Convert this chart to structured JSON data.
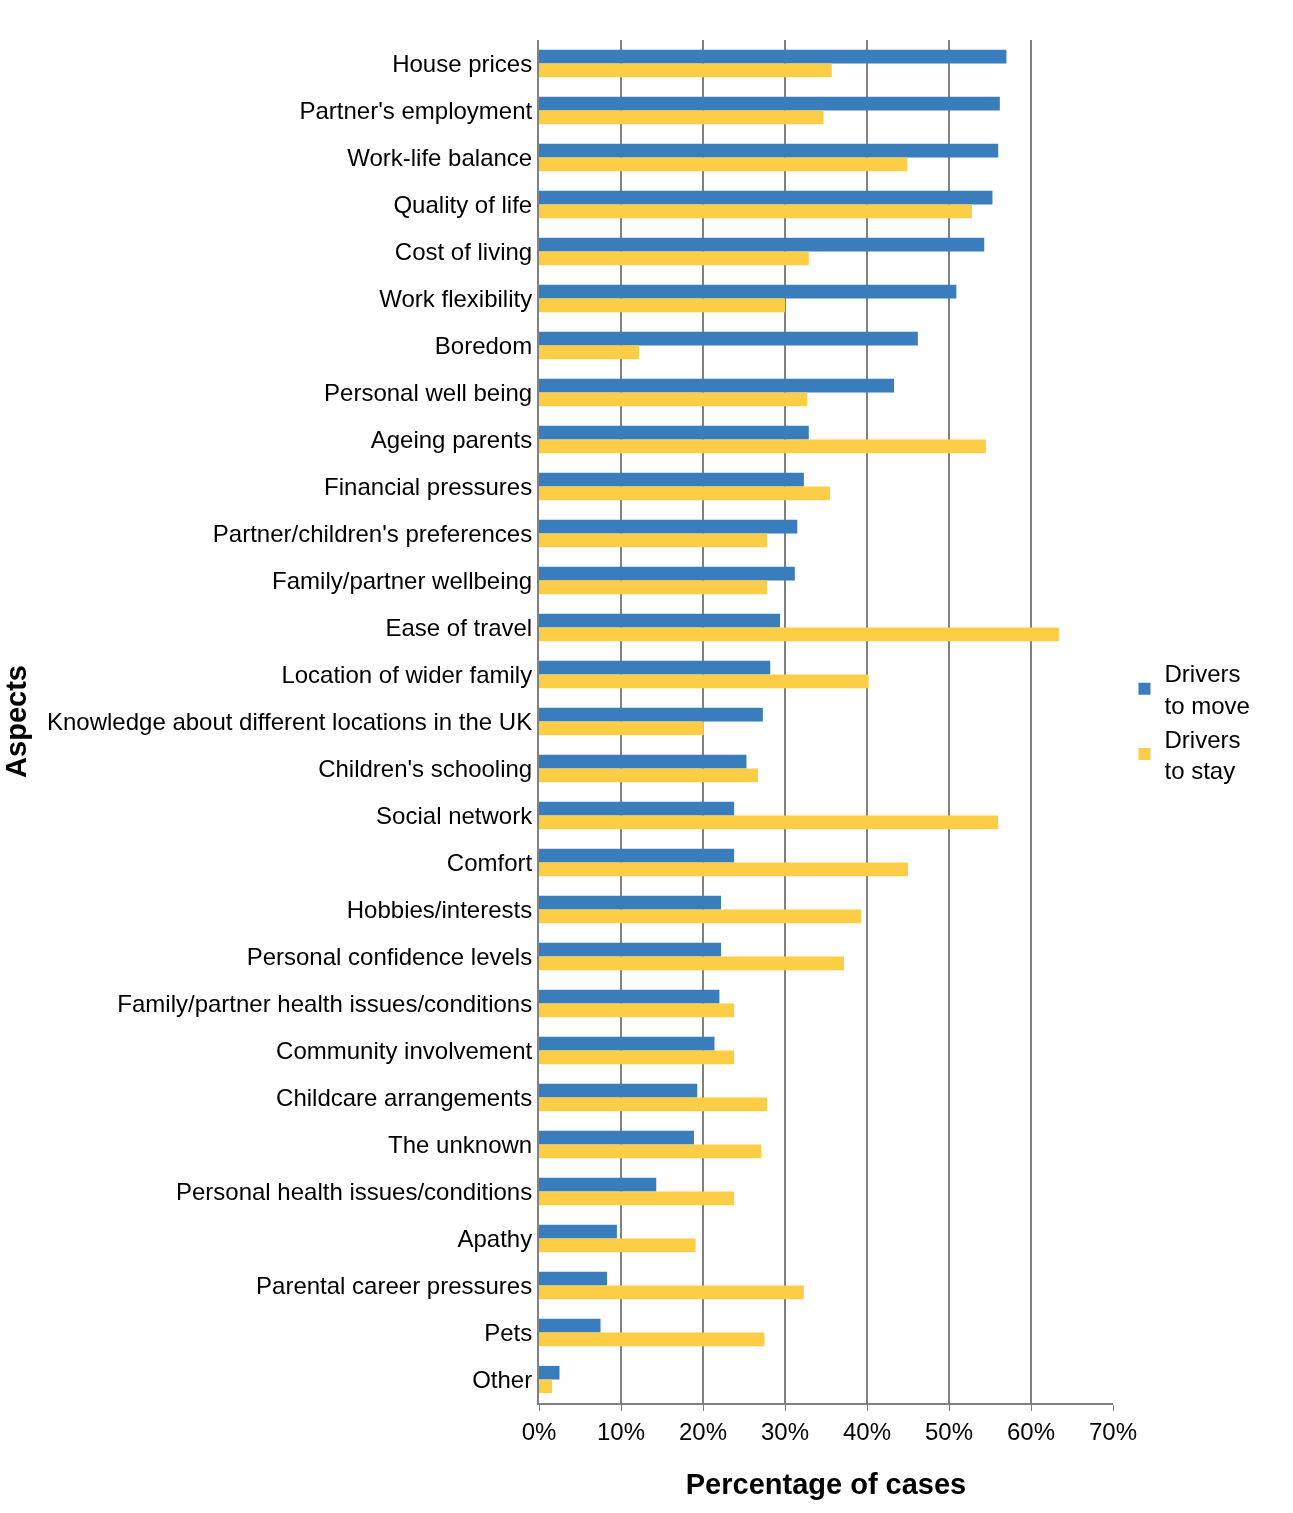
{
  "chart_data": {
    "type": "bar",
    "orientation": "horizontal",
    "xlabel": "Percentage of cases",
    "ylabel": "Aspects",
    "categories": [
      "House prices",
      "Partner's employment",
      "Work-life balance",
      "Quality of life",
      "Cost of living",
      "Work flexibility",
      "Boredom",
      "Personal well being",
      "Ageing parents",
      "Financial pressures",
      "Partner/children's preferences",
      "Family/partner wellbeing",
      "Ease of travel",
      "Location of wider family",
      "Knowledge about different locations in the UK",
      "Children's schooling",
      "Social network",
      "Comfort",
      "Hobbies/interests",
      "Personal confidence levels",
      "Family/partner health issues/conditions",
      "Community involvement",
      "Childcare arrangements",
      "The unknown",
      "Personal health issues/conditions",
      "Apathy",
      "Parental career pressures",
      "Pets",
      "Other"
    ],
    "series": [
      {
        "name": "Drivers to move",
        "color": "#3a7dbd",
        "values": [
          57.0,
          56.2,
          56.0,
          55.3,
          54.3,
          50.9,
          46.2,
          43.3,
          32.9,
          32.3,
          31.5,
          31.2,
          29.4,
          28.2,
          27.3,
          25.3,
          23.8,
          23.8,
          22.2,
          22.2,
          22.0,
          21.4,
          19.3,
          18.9,
          14.3,
          9.5,
          8.3,
          7.5,
          2.5
        ]
      },
      {
        "name": "Drivers to stay",
        "color": "#fdcd45",
        "values": [
          35.7,
          34.7,
          44.9,
          52.8,
          32.9,
          30.0,
          12.2,
          32.7,
          54.5,
          35.5,
          27.8,
          27.8,
          63.4,
          40.2,
          20.1,
          26.7,
          56.0,
          45.0,
          39.3,
          37.2,
          23.8,
          23.8,
          27.8,
          27.1,
          23.8,
          19.1,
          32.3,
          27.5,
          1.6
        ]
      }
    ],
    "xlim": [
      0,
      70
    ],
    "xticks": [
      {
        "value": 0,
        "label": "0%"
      },
      {
        "value": 10,
        "label": "10%"
      },
      {
        "value": 20,
        "label": "20%"
      },
      {
        "value": 30,
        "label": "30%"
      },
      {
        "value": 40,
        "label": "40%"
      },
      {
        "value": 50,
        "label": "50%"
      },
      {
        "value": 60,
        "label": "60%"
      },
      {
        "value": 70,
        "label": "70%"
      }
    ],
    "grid": "x",
    "legend": "right"
  }
}
